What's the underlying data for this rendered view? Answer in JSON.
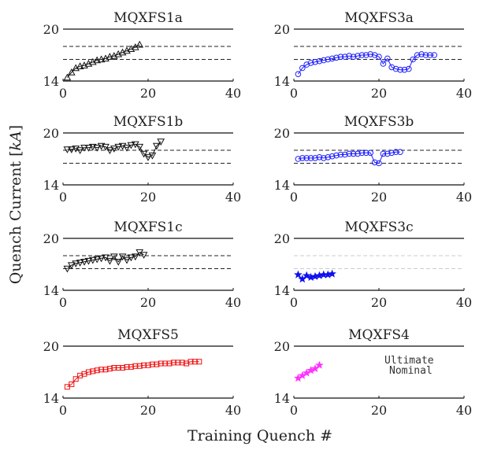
{
  "figure": {
    "xlabel": "Training Quench #",
    "ylabel": "Quench Current [kA]",
    "ylabel_main": "Quench Current ",
    "ylabel_unit": "kA"
  },
  "legend": {
    "items": [
      "Ultimate",
      "Nominal"
    ]
  },
  "chart_data": [
    {
      "type": "line",
      "title": "MQXFS1a",
      "xlim": [
        0,
        40
      ],
      "ylim": [
        14,
        20
      ],
      "xticks": [
        0,
        20,
        40
      ],
      "yticks": [
        14,
        20
      ],
      "ultimate": 18.0,
      "nominal": 16.5,
      "marker": "triangle-up",
      "color": "#111111",
      "series": [
        {
          "x": [
            1,
            2,
            3,
            4,
            5,
            6,
            7,
            8,
            9,
            10,
            11,
            12,
            13,
            14,
            15,
            16,
            17,
            18
          ],
          "values": [
            14.4,
            15.0,
            15.5,
            15.7,
            15.8,
            16.0,
            16.2,
            16.4,
            16.5,
            16.6,
            16.8,
            16.9,
            17.1,
            17.3,
            17.5,
            17.7,
            17.9,
            18.2
          ]
        }
      ]
    },
    {
      "type": "line",
      "title": "MQXFS3a",
      "xlim": [
        0,
        40
      ],
      "ylim": [
        14,
        20
      ],
      "xticks": [
        0,
        20,
        40
      ],
      "yticks": [
        14,
        20
      ],
      "ultimate": 18.0,
      "nominal": 16.5,
      "marker": "circle",
      "color": "#1f1fff",
      "series": [
        {
          "x": [
            1,
            2,
            3,
            4,
            5,
            6,
            7,
            8,
            9,
            10,
            11,
            12,
            13,
            14,
            15,
            16,
            17,
            18,
            19,
            20,
            21,
            22,
            23,
            24,
            25,
            26,
            27,
            28,
            29,
            30,
            31,
            32,
            33
          ],
          "values": [
            14.8,
            15.5,
            15.9,
            16.1,
            16.2,
            16.3,
            16.4,
            16.5,
            16.6,
            16.7,
            16.8,
            16.8,
            16.9,
            16.8,
            16.9,
            17.0,
            17.0,
            17.1,
            17.0,
            16.8,
            16.0,
            16.6,
            15.6,
            15.4,
            15.3,
            15.3,
            15.4,
            16.5,
            17.0,
            17.1,
            17.0,
            17.0,
            17.0
          ]
        }
      ]
    },
    {
      "type": "line",
      "title": "MQXFS1b",
      "xlim": [
        0,
        40
      ],
      "ylim": [
        14,
        20
      ],
      "xticks": [
        0,
        20,
        40
      ],
      "yticks": [
        14,
        20
      ],
      "ultimate": 18.0,
      "nominal": 16.5,
      "marker": "triangle-down",
      "color": "#111111",
      "series": [
        {
          "x": [
            1,
            2,
            3,
            4,
            5,
            6,
            7,
            8,
            9,
            10,
            11,
            12,
            13,
            14,
            15,
            16,
            17,
            18,
            19,
            20,
            21,
            22,
            23
          ],
          "values": [
            18.1,
            18.1,
            18.2,
            18.0,
            18.3,
            18.3,
            18.4,
            18.3,
            18.5,
            18.4,
            18.0,
            18.2,
            18.4,
            18.5,
            18.3,
            18.6,
            18.7,
            18.4,
            17.6,
            17.2,
            17.4,
            18.5,
            19.0
          ]
        }
      ]
    },
    {
      "type": "line",
      "title": "MQXFS3b",
      "xlim": [
        0,
        40
      ],
      "ylim": [
        14,
        20
      ],
      "xticks": [
        0,
        20,
        40
      ],
      "yticks": [
        14,
        20
      ],
      "ultimate": 18.0,
      "nominal": 16.5,
      "marker": "circle",
      "color": "#1f1fff",
      "series": [
        {
          "x": [
            1,
            2,
            3,
            4,
            5,
            6,
            7,
            8,
            9,
            10,
            11,
            12,
            13,
            14,
            15,
            16,
            17,
            18,
            19,
            20,
            21,
            22,
            23,
            24,
            25
          ],
          "values": [
            17.0,
            17.1,
            17.1,
            17.1,
            17.1,
            17.2,
            17.1,
            17.2,
            17.3,
            17.4,
            17.5,
            17.5,
            17.6,
            17.6,
            17.6,
            17.7,
            17.7,
            17.7,
            16.6,
            16.5,
            17.6,
            17.6,
            17.7,
            17.8,
            17.8
          ]
        }
      ]
    },
    {
      "type": "line",
      "title": "MQXFS1c",
      "xlim": [
        0,
        40
      ],
      "ylim": [
        14,
        20
      ],
      "xticks": [
        0,
        20,
        40
      ],
      "yticks": [
        14,
        20
      ],
      "ultimate": 18.0,
      "nominal": 16.5,
      "marker": "triangle-down",
      "color": "#111111",
      "series": [
        {
          "x": [
            1,
            2,
            3,
            4,
            5,
            6,
            7,
            8,
            9,
            10,
            11,
            12,
            13,
            14,
            15,
            16,
            17,
            18,
            19
          ],
          "values": [
            16.5,
            16.9,
            17.1,
            17.2,
            17.3,
            17.4,
            17.5,
            17.6,
            17.7,
            17.8,
            17.4,
            17.9,
            17.3,
            17.9,
            17.5,
            17.8,
            17.9,
            18.4,
            18.1
          ]
        }
      ]
    },
    {
      "type": "line",
      "title": "MQXFS3c",
      "xlim": [
        0,
        40
      ],
      "ylim": [
        14,
        20
      ],
      "xticks": [
        0,
        20,
        40
      ],
      "yticks": [
        14,
        20
      ],
      "ultimate": 18.0,
      "nominal": 16.5,
      "marker": "star",
      "color": "#1010ee",
      "guide_color": "#cccccc",
      "series": [
        {
          "x": [
            1,
            2,
            3,
            4,
            5,
            6,
            7,
            8,
            9
          ],
          "values": [
            15.8,
            15.3,
            15.7,
            15.5,
            15.6,
            15.7,
            15.8,
            15.8,
            15.9
          ]
        }
      ]
    },
    {
      "type": "line",
      "title": "MQXFS5",
      "xlim": [
        0,
        40
      ],
      "ylim": [
        14,
        20
      ],
      "xticks": [
        0,
        20,
        40
      ],
      "yticks": [
        14,
        20
      ],
      "marker": "square",
      "color": "#ee1111",
      "series": [
        {
          "x": [
            1,
            2,
            3,
            4,
            5,
            6,
            7,
            8,
            9,
            10,
            11,
            12,
            13,
            14,
            15,
            16,
            17,
            18,
            19,
            20,
            21,
            22,
            23,
            24,
            25,
            26,
            27,
            28,
            29,
            30,
            31,
            32
          ],
          "values": [
            15.3,
            15.6,
            16.2,
            16.6,
            16.8,
            17.0,
            17.1,
            17.2,
            17.3,
            17.3,
            17.4,
            17.5,
            17.5,
            17.5,
            17.6,
            17.6,
            17.7,
            17.7,
            17.8,
            17.8,
            17.9,
            17.9,
            18.0,
            18.0,
            18.0,
            18.1,
            18.1,
            18.1,
            18.0,
            18.2,
            18.2,
            18.2
          ]
        }
      ]
    },
    {
      "type": "line",
      "title": "MQXFS4",
      "xlim": [
        0,
        40
      ],
      "ylim": [
        14,
        20
      ],
      "xticks": [
        0,
        20,
        40
      ],
      "yticks": [
        14,
        20
      ],
      "marker": "star",
      "color": "#ff33ff",
      "series": [
        {
          "x": [
            1,
            2,
            3,
            4,
            5,
            6
          ],
          "values": [
            16.3,
            16.6,
            16.9,
            17.2,
            17.4,
            17.8
          ]
        }
      ]
    }
  ]
}
